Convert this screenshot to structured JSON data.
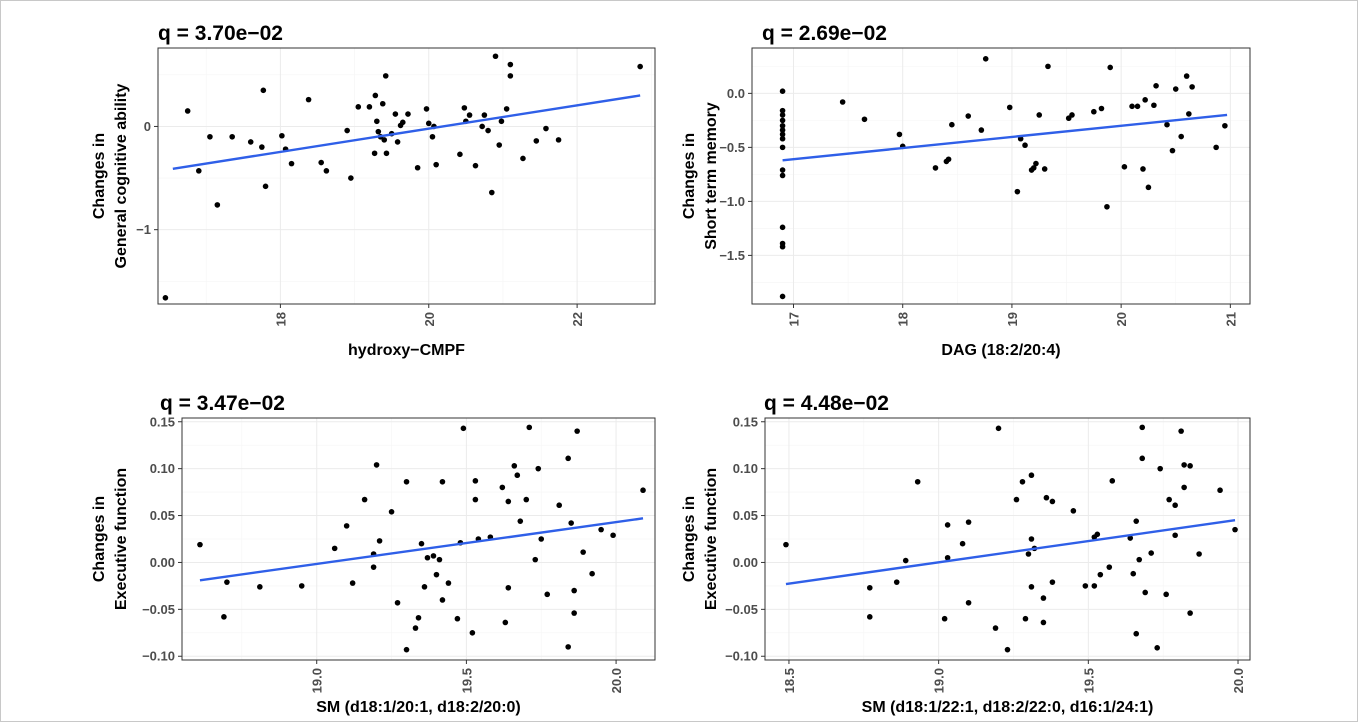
{
  "chart_data": [
    {
      "type": "scatter",
      "title": "q = 3.70e−02",
      "xlabel": "hydroxy−CMPF",
      "ylabel": [
        "Changes in",
        "General cognitive ability"
      ],
      "xlim": [
        16.35,
        23.05
      ],
      "ylim": [
        -1.72,
        0.76
      ],
      "xticks": [
        18,
        20,
        22
      ],
      "xtick_labels": [
        "18",
        "20",
        "22"
      ],
      "yticks": [
        -1,
        0
      ],
      "ytick_labels": [
        "−1",
        "0"
      ],
      "fit_line": {
        "x": [
          16.55,
          22.85
        ],
        "y": [
          -0.41,
          0.3
        ],
        "color": "#2f5fe8"
      },
      "points": [
        [
          16.45,
          -1.66
        ],
        [
          16.75,
          0.15
        ],
        [
          16.9,
          -0.43
        ],
        [
          17.05,
          -0.1
        ],
        [
          17.15,
          -0.76
        ],
        [
          17.35,
          -0.1
        ],
        [
          17.6,
          -0.15
        ],
        [
          17.75,
          -0.2
        ],
        [
          17.77,
          0.35
        ],
        [
          17.8,
          -0.58
        ],
        [
          18.02,
          -0.09
        ],
        [
          18.07,
          -0.22
        ],
        [
          18.15,
          -0.36
        ],
        [
          18.38,
          0.26
        ],
        [
          18.55,
          -0.35
        ],
        [
          18.62,
          -0.43
        ],
        [
          18.9,
          -0.04
        ],
        [
          18.95,
          -0.5
        ],
        [
          19.05,
          0.19
        ],
        [
          19.2,
          0.19
        ],
        [
          19.27,
          -0.26
        ],
        [
          19.28,
          0.3
        ],
        [
          19.3,
          0.05
        ],
        [
          19.32,
          -0.05
        ],
        [
          19.35,
          -0.1
        ],
        [
          19.38,
          0.22
        ],
        [
          19.4,
          -0.13
        ],
        [
          19.42,
          0.49
        ],
        [
          19.43,
          -0.26
        ],
        [
          19.5,
          -0.07
        ],
        [
          19.55,
          0.12
        ],
        [
          19.58,
          -0.15
        ],
        [
          19.62,
          0.01
        ],
        [
          19.65,
          0.04
        ],
        [
          19.72,
          0.12
        ],
        [
          19.85,
          -0.4
        ],
        [
          19.97,
          0.17
        ],
        [
          20.0,
          0.03
        ],
        [
          20.05,
          -0.1
        ],
        [
          20.07,
          0.0
        ],
        [
          20.1,
          -0.37
        ],
        [
          20.42,
          -0.27
        ],
        [
          20.48,
          0.18
        ],
        [
          20.5,
          0.05
        ],
        [
          20.55,
          0.11
        ],
        [
          20.63,
          -0.38
        ],
        [
          20.72,
          0.0
        ],
        [
          20.75,
          0.11
        ],
        [
          20.8,
          -0.04
        ],
        [
          20.85,
          -0.64
        ],
        [
          20.9,
          0.68
        ],
        [
          20.95,
          -0.18
        ],
        [
          20.98,
          0.05
        ],
        [
          21.05,
          0.17
        ],
        [
          21.1,
          0.6
        ],
        [
          21.1,
          0.49
        ],
        [
          21.27,
          -0.31
        ],
        [
          21.45,
          -0.14
        ],
        [
          21.58,
          -0.02
        ],
        [
          21.75,
          -0.13
        ],
        [
          22.85,
          0.58
        ]
      ],
      "panel_color": "#333333",
      "grid": true,
      "legend": "none"
    },
    {
      "type": "scatter",
      "title": "q = 2.69e−02",
      "xlabel": "DAG (18:2/20:4)",
      "ylabel": [
        "Changes in",
        "Short term memory"
      ],
      "xlim": [
        16.62,
        21.18
      ],
      "ylim": [
        -1.95,
        0.42
      ],
      "xticks": [
        17,
        18,
        19,
        20,
        21
      ],
      "xtick_labels": [
        "17",
        "18",
        "19",
        "20",
        "21"
      ],
      "yticks": [
        -1.5,
        -1.0,
        -0.5,
        0.0
      ],
      "ytick_labels": [
        "−1.5",
        "−1.0",
        "−0.5",
        "0.0"
      ],
      "fit_line": {
        "x": [
          16.9,
          20.97
        ],
        "y": [
          -0.62,
          -0.2
        ],
        "color": "#2f5fe8"
      },
      "points": [
        [
          16.9,
          0.02
        ],
        [
          16.9,
          -0.16
        ],
        [
          16.9,
          -0.2
        ],
        [
          16.9,
          -0.25
        ],
        [
          16.9,
          -0.3
        ],
        [
          16.9,
          -0.34
        ],
        [
          16.9,
          -0.38
        ],
        [
          16.9,
          -0.42
        ],
        [
          16.9,
          -0.5
        ],
        [
          16.9,
          -0.71
        ],
        [
          16.9,
          -0.76
        ],
        [
          16.9,
          -1.24
        ],
        [
          16.9,
          -1.39
        ],
        [
          16.9,
          -1.42
        ],
        [
          16.9,
          -1.88
        ],
        [
          17.45,
          -0.08
        ],
        [
          17.65,
          -0.24
        ],
        [
          17.97,
          -0.38
        ],
        [
          18.0,
          -0.49
        ],
        [
          18.3,
          -0.69
        ],
        [
          18.4,
          -0.63
        ],
        [
          18.42,
          -0.61
        ],
        [
          18.45,
          -0.29
        ],
        [
          18.6,
          -0.21
        ],
        [
          18.72,
          -0.34
        ],
        [
          18.76,
          0.32
        ],
        [
          18.98,
          -0.13
        ],
        [
          19.05,
          -0.91
        ],
        [
          19.08,
          -0.42
        ],
        [
          19.12,
          -0.48
        ],
        [
          19.18,
          -0.71
        ],
        [
          19.2,
          -0.69
        ],
        [
          19.22,
          -0.65
        ],
        [
          19.25,
          -0.2
        ],
        [
          19.3,
          -0.7
        ],
        [
          19.33,
          0.25
        ],
        [
          19.52,
          -0.23
        ],
        [
          19.55,
          -0.2
        ],
        [
          19.75,
          -0.17
        ],
        [
          19.82,
          -0.14
        ],
        [
          19.87,
          -1.05
        ],
        [
          19.9,
          0.24
        ],
        [
          20.03,
          -0.68
        ],
        [
          20.1,
          -0.12
        ],
        [
          20.15,
          -0.12
        ],
        [
          20.2,
          -0.7
        ],
        [
          20.22,
          -0.06
        ],
        [
          20.25,
          -0.87
        ],
        [
          20.3,
          -0.11
        ],
        [
          20.32,
          0.07
        ],
        [
          20.42,
          -0.29
        ],
        [
          20.47,
          -0.53
        ],
        [
          20.5,
          0.04
        ],
        [
          20.55,
          -0.4
        ],
        [
          20.6,
          0.16
        ],
        [
          20.62,
          -0.19
        ],
        [
          20.65,
          0.06
        ],
        [
          20.87,
          -0.5
        ],
        [
          20.95,
          -0.3
        ]
      ],
      "panel_color": "#333333",
      "grid": true,
      "legend": "none"
    },
    {
      "type": "scatter",
      "title": "q = 3.47e−02",
      "xlabel": "SM (d18:1/20:1, d18:2/20:0)",
      "ylabel": [
        "Changes in",
        "Executive function"
      ],
      "xlim": [
        18.55,
        20.13
      ],
      "ylim": [
        -0.104,
        0.154
      ],
      "xticks": [
        19.0,
        19.5,
        20.0
      ],
      "xtick_labels": [
        "19.0",
        "19.5",
        "20.0"
      ],
      "yticks": [
        -0.1,
        -0.05,
        0.0,
        0.05,
        0.1,
        0.15
      ],
      "ytick_labels": [
        "−0.10",
        "−0.05",
        "0.00",
        "0.05",
        "0.10",
        "0.15"
      ],
      "fit_line": {
        "x": [
          18.61,
          20.09
        ],
        "y": [
          -0.019,
          0.047
        ],
        "color": "#2f5fe8"
      },
      "points": [
        [
          18.61,
          0.019
        ],
        [
          18.69,
          -0.058
        ],
        [
          18.7,
          -0.021
        ],
        [
          18.81,
          -0.026
        ],
        [
          18.95,
          -0.025
        ],
        [
          19.06,
          0.015
        ],
        [
          19.1,
          0.039
        ],
        [
          19.12,
          -0.022
        ],
        [
          19.16,
          0.067
        ],
        [
          19.19,
          0.009
        ],
        [
          19.19,
          -0.005
        ],
        [
          19.2,
          0.104
        ],
        [
          19.21,
          0.023
        ],
        [
          19.25,
          0.054
        ],
        [
          19.27,
          -0.043
        ],
        [
          19.3,
          0.086
        ],
        [
          19.3,
          -0.093
        ],
        [
          19.33,
          -0.07
        ],
        [
          19.34,
          -0.059
        ],
        [
          19.35,
          0.02
        ],
        [
          19.36,
          -0.026
        ],
        [
          19.37,
          0.005
        ],
        [
          19.39,
          0.007
        ],
        [
          19.4,
          -0.013
        ],
        [
          19.41,
          0.003
        ],
        [
          19.42,
          0.086
        ],
        [
          19.42,
          -0.04
        ],
        [
          19.44,
          -0.022
        ],
        [
          19.47,
          -0.06
        ],
        [
          19.48,
          0.021
        ],
        [
          19.49,
          0.143
        ],
        [
          19.52,
          -0.075
        ],
        [
          19.53,
          0.087
        ],
        [
          19.53,
          0.067
        ],
        [
          19.54,
          0.025
        ],
        [
          19.58,
          0.027
        ],
        [
          19.62,
          0.08
        ],
        [
          19.63,
          -0.064
        ],
        [
          19.64,
          0.065
        ],
        [
          19.64,
          -0.027
        ],
        [
          19.66,
          0.103
        ],
        [
          19.67,
          0.093
        ],
        [
          19.68,
          0.044
        ],
        [
          19.7,
          0.067
        ],
        [
          19.71,
          0.144
        ],
        [
          19.73,
          0.003
        ],
        [
          19.74,
          0.1
        ],
        [
          19.75,
          0.025
        ],
        [
          19.77,
          -0.034
        ],
        [
          19.81,
          0.061
        ],
        [
          19.84,
          -0.09
        ],
        [
          19.84,
          0.111
        ],
        [
          19.85,
          0.042
        ],
        [
          19.86,
          -0.054
        ],
        [
          19.86,
          -0.03
        ],
        [
          19.87,
          0.14
        ],
        [
          19.89,
          0.011
        ],
        [
          19.92,
          -0.012
        ],
        [
          19.95,
          0.035
        ],
        [
          19.99,
          0.029
        ],
        [
          20.09,
          0.077
        ]
      ],
      "panel_color": "#333333",
      "grid": true,
      "legend": "none"
    },
    {
      "type": "scatter",
      "title": "q = 4.48e−02",
      "xlabel": "SM (d18:1/22:1, d18:2/22:0, d16:1/24:1)",
      "ylabel": [
        "Changes in",
        "Executive function"
      ],
      "xlim": [
        18.42,
        20.04
      ],
      "ylim": [
        -0.104,
        0.154
      ],
      "xticks": [
        18.5,
        19.0,
        19.5,
        20.0
      ],
      "xtick_labels": [
        "18.5",
        "19.0",
        "19.5",
        "20.0"
      ],
      "yticks": [
        -0.1,
        -0.05,
        0.0,
        0.05,
        0.1,
        0.15
      ],
      "ytick_labels": [
        "−0.10",
        "−0.05",
        "0.00",
        "0.05",
        "0.10",
        "0.15"
      ],
      "fit_line": {
        "x": [
          18.49,
          19.99
        ],
        "y": [
          -0.023,
          0.045
        ],
        "color": "#2f5fe8"
      },
      "points": [
        [
          18.49,
          0.019
        ],
        [
          18.77,
          -0.058
        ],
        [
          18.77,
          -0.027
        ],
        [
          18.86,
          -0.021
        ],
        [
          18.89,
          0.002
        ],
        [
          18.93,
          0.086
        ],
        [
          19.02,
          -0.06
        ],
        [
          19.03,
          0.005
        ],
        [
          19.03,
          0.04
        ],
        [
          19.08,
          0.02
        ],
        [
          19.1,
          0.043
        ],
        [
          19.1,
          -0.043
        ],
        [
          19.19,
          -0.07
        ],
        [
          19.2,
          0.143
        ],
        [
          19.23,
          -0.093
        ],
        [
          19.26,
          0.067
        ],
        [
          19.28,
          0.086
        ],
        [
          19.29,
          -0.06
        ],
        [
          19.3,
          0.009
        ],
        [
          19.31,
          0.025
        ],
        [
          19.31,
          0.093
        ],
        [
          19.31,
          -0.026
        ],
        [
          19.32,
          0.015
        ],
        [
          19.35,
          -0.038
        ],
        [
          19.35,
          -0.064
        ],
        [
          19.36,
          0.069
        ],
        [
          19.38,
          0.065
        ],
        [
          19.38,
          -0.021
        ],
        [
          19.45,
          0.055
        ],
        [
          19.49,
          -0.025
        ],
        [
          19.52,
          0.027
        ],
        [
          19.52,
          -0.025
        ],
        [
          19.53,
          0.03
        ],
        [
          19.54,
          -0.013
        ],
        [
          19.57,
          -0.005
        ],
        [
          19.58,
          0.087
        ],
        [
          19.64,
          0.026
        ],
        [
          19.65,
          -0.012
        ],
        [
          19.66,
          0.044
        ],
        [
          19.66,
          -0.076
        ],
        [
          19.67,
          0.003
        ],
        [
          19.68,
          0.144
        ],
        [
          19.68,
          0.111
        ],
        [
          19.69,
          -0.032
        ],
        [
          19.71,
          0.01
        ],
        [
          19.73,
          -0.091
        ],
        [
          19.74,
          0.1
        ],
        [
          19.76,
          -0.034
        ],
        [
          19.77,
          0.067
        ],
        [
          19.79,
          0.061
        ],
        [
          19.79,
          0.029
        ],
        [
          19.81,
          0.14
        ],
        [
          19.82,
          0.08
        ],
        [
          19.82,
          0.104
        ],
        [
          19.84,
          0.103
        ],
        [
          19.84,
          -0.054
        ],
        [
          19.87,
          0.009
        ],
        [
          19.94,
          0.077
        ],
        [
          19.99,
          0.035
        ]
      ],
      "panel_color": "#333333",
      "grid": true,
      "legend": "none"
    }
  ]
}
